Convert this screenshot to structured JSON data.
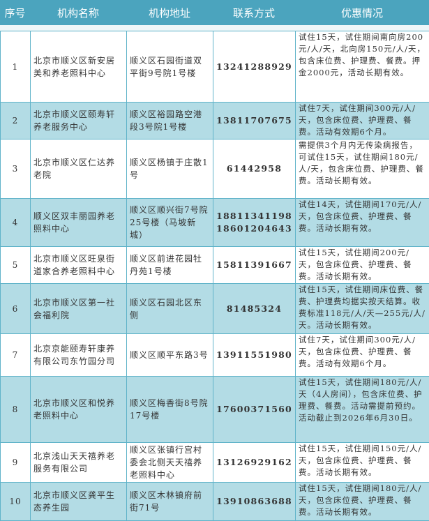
{
  "header": {
    "no": "序号",
    "name": "机构名称",
    "address": "机构地址",
    "contact": "联系方式",
    "offer": "优惠情况"
  },
  "colors": {
    "header_bg": "#4ba4be",
    "alt_row": "#b3dce5",
    "border": "#5fb3c9"
  },
  "rows": [
    {
      "no": "1",
      "name": "北京市顺义区新安居美和养老照料中心",
      "address": "顺义区石园街道双平街9号院1号楼",
      "phones": [
        "13241288929"
      ],
      "offer": "试住15天，试住期间南向房200元/人/天，北向房150元/人/天，包含床位费、护理费、餐费。押金2000元，活动长期有效。"
    },
    {
      "no": "2",
      "name": "北京市顺义区颐寿轩养老服务中心",
      "address": "顺义区裕园路空港段3号院1号楼",
      "phones": [
        "13811707675"
      ],
      "offer": "试住7天，试住期间300元/人/天，包含床位费、护理费、餐费。活动有效期6个月。"
    },
    {
      "no": "3",
      "name": "北京市顺义区仁达养老院",
      "address": "顺义区杨镇于庄散1号",
      "phones": [
        "61442958"
      ],
      "offer": "需提供3个月内无传染病报告，可试住15天，试住期间180元/人/天，包含床位费、护理费、餐费。活动长期有效。"
    },
    {
      "no": "4",
      "name": "顺义区双丰丽园养老照料中心",
      "address": "顺义区顺兴街7号院25号楼（马坡新城）",
      "phones": [
        "18811341198",
        "18601204643"
      ],
      "offer": "试住14天，试住期间170元/人/天，包含床位费、护理费、餐费。活动长期有效。"
    },
    {
      "no": "5",
      "name": "北京市顺义区旺泉街道家合养老照料中心",
      "address": "顺义区前进花园牡丹苑1号楼",
      "phones": [
        "15811391667"
      ],
      "offer": "试住15天，试住期间200元/天，包含床位费、护理费、餐费。活动长期有效。"
    },
    {
      "no": "6",
      "name": "北京市顺义区第一社会福利院",
      "address": "顺义区石园北区东侧",
      "phones": [
        "81485324"
      ],
      "offer": "试住15天，试住期间床位费、餐费、护理费均据实按天结算。收费标准118元/人/天—255元/人/天。活动长期有效。"
    },
    {
      "no": "7",
      "name": "北京京能颐寿轩康养有限公司东竹园分司",
      "address": "顺义区顺平东路3号",
      "phones": [
        "13911551980"
      ],
      "offer": "试住7天，试住期间300元/人/天，包含床位费、护理费、餐费。活动有效期6个月。"
    },
    {
      "no": "8",
      "name": "北京市顺义区和悦养老照料中心",
      "address": "顺义区梅香街8号院17号楼",
      "phones": [
        "17600371560"
      ],
      "offer": "试住15天，试住期间180元/人/天（4人房间），包含床位费、护理费、餐费。活动需提前预约。活动截止到2026年6月30日。"
    },
    {
      "no": "9",
      "name": "北京浅山天天禧养老服务有限公司",
      "address": "顺义区张镇行宫村委会北侧天天禧养老照料中心",
      "phones": [
        "13126929162"
      ],
      "offer": "试住15天，试住期间150元/人/天，包含床位费、护理费、餐费。活动长期有效。"
    },
    {
      "no": "10",
      "name": "北京市顺义区龚平生态养生园",
      "address": "顺义区木林镇府前街71号",
      "phones": [
        "13910863688"
      ],
      "offer": "试住15天，试住期间180元/人/天，包含床位费、护理费、餐费。活动长期有效。"
    }
  ]
}
